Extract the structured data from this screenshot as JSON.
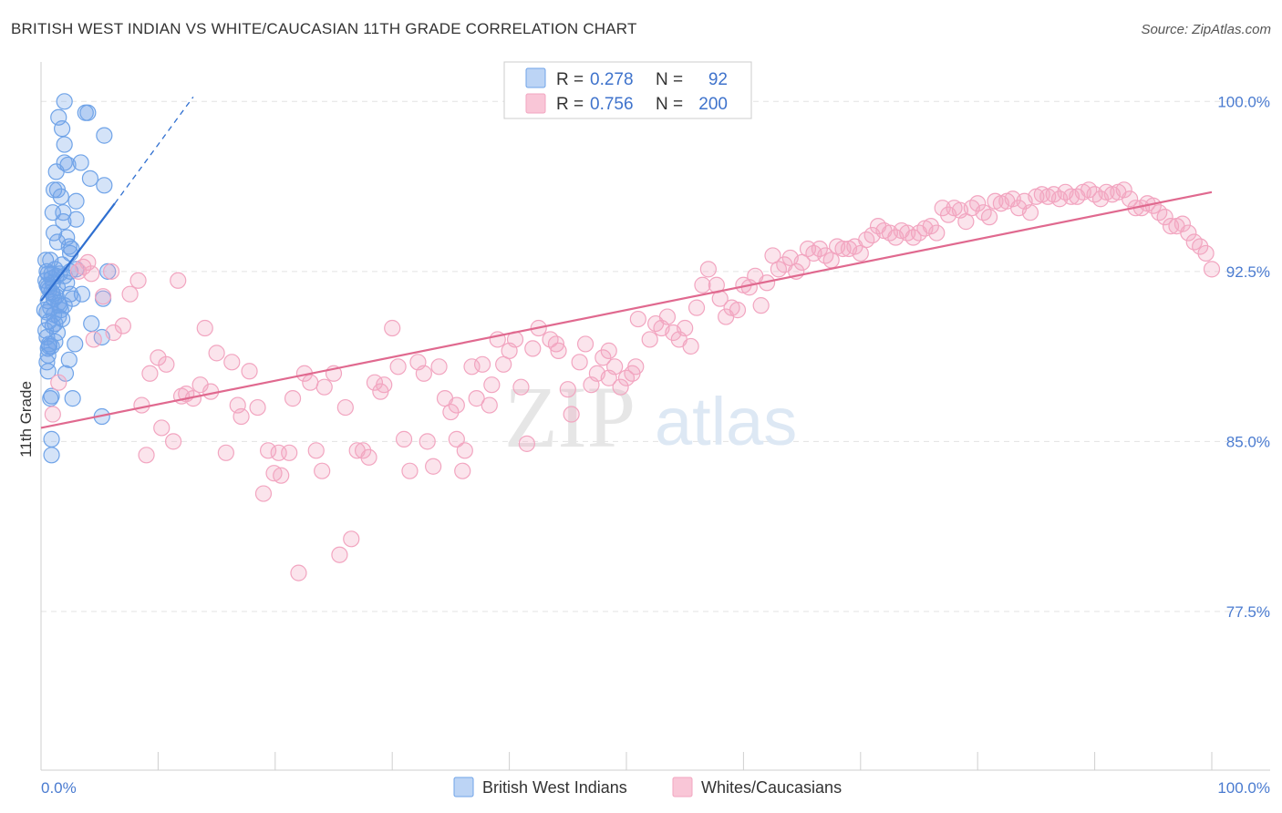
{
  "chart_data": {
    "type": "scatter",
    "title": "BRITISH WEST INDIAN VS WHITE/CAUCASIAN 11TH GRADE CORRELATION CHART",
    "source": "Source: ZipAtlas.com",
    "ylabel": "11th Grade",
    "xlabel": "",
    "xlim": [
      0,
      100
    ],
    "ylim": [
      70.5,
      101.5
    ],
    "x_tick_labels": [
      "0.0%",
      "100.0%"
    ],
    "y_ticks": [
      {
        "value": 77.5,
        "label": "77.5%"
      },
      {
        "value": 85.0,
        "label": "85.0%"
      },
      {
        "value": 92.5,
        "label": "92.5%"
      },
      {
        "value": 100.0,
        "label": "100.0%"
      }
    ],
    "watermark": {
      "part1": "ZIP",
      "part2": "atlas"
    },
    "legend": {
      "r_label": "R =",
      "n_label": "N =",
      "entries": [
        {
          "r": "0.278",
          "n": "92"
        },
        {
          "r": "0.756",
          "n": "200"
        }
      ]
    },
    "series": [
      {
        "name": "British West Indians",
        "color": "#6fa3e8",
        "line_color": "#2f6fd0",
        "trend": {
          "x0": 0,
          "y0": 91.2,
          "x1": 6.3,
          "y1": 95.5,
          "dash_x1": 13,
          "dash_y1": 100.2
        },
        "points": [
          [
            2,
            100
          ],
          [
            4,
            99.5
          ],
          [
            1.5,
            99.3
          ],
          [
            3.8,
            99.5
          ],
          [
            1.8,
            98.8
          ],
          [
            5.4,
            98.5
          ],
          [
            2,
            98.1
          ],
          [
            3.4,
            97.3
          ],
          [
            2,
            97.3
          ],
          [
            2.3,
            97.2
          ],
          [
            1.3,
            96.9
          ],
          [
            4.2,
            96.6
          ],
          [
            5.4,
            96.3
          ],
          [
            1.4,
            96.1
          ],
          [
            1.1,
            96.1
          ],
          [
            1.7,
            95.8
          ],
          [
            3,
            95.6
          ],
          [
            1,
            95.1
          ],
          [
            1.9,
            95.1
          ],
          [
            3,
            94.8
          ],
          [
            1.9,
            94.7
          ],
          [
            1.1,
            94.2
          ],
          [
            2.2,
            94
          ],
          [
            1.4,
            93.8
          ],
          [
            2.4,
            93.6
          ],
          [
            2.6,
            93.5
          ],
          [
            2.5,
            93.3
          ],
          [
            0.4,
            93
          ],
          [
            1.8,
            92.8
          ],
          [
            3,
            92.6
          ],
          [
            0.5,
            92.5
          ],
          [
            0.9,
            92.4
          ],
          [
            1.6,
            92.4
          ],
          [
            2.5,
            92.5
          ],
          [
            0.9,
            92.2
          ],
          [
            0.6,
            92.4
          ],
          [
            5.7,
            92.5
          ],
          [
            2,
            92.3
          ],
          [
            0.4,
            92.1
          ],
          [
            1,
            92
          ],
          [
            0.5,
            91.9
          ],
          [
            1.4,
            91.8
          ],
          [
            0.7,
            91.7
          ],
          [
            0.9,
            91.6
          ],
          [
            2.5,
            91.5
          ],
          [
            1.3,
            91.4
          ],
          [
            3.5,
            91.5
          ],
          [
            1.1,
            91.3
          ],
          [
            0.6,
            91.2
          ],
          [
            2.7,
            91.3
          ],
          [
            1.5,
            91.1
          ],
          [
            2,
            91
          ],
          [
            0.3,
            90.8
          ],
          [
            1.7,
            90.8
          ],
          [
            0.5,
            90.7
          ],
          [
            1.1,
            90.6
          ],
          [
            1.5,
            90.5
          ],
          [
            1.8,
            90.4
          ],
          [
            1.2,
            90.2
          ],
          [
            4.3,
            90.2
          ],
          [
            5.3,
            91.3
          ],
          [
            1,
            90.1
          ],
          [
            0.4,
            89.9
          ],
          [
            5.2,
            89.6
          ],
          [
            1.2,
            89.4
          ],
          [
            0.7,
            89.3
          ],
          [
            2.9,
            89.3
          ],
          [
            0.7,
            89.2
          ],
          [
            0.9,
            89.2
          ],
          [
            0.6,
            89.1
          ],
          [
            0.6,
            88.8
          ],
          [
            2.4,
            88.6
          ],
          [
            0.5,
            88.5
          ],
          [
            0.6,
            88.1
          ],
          [
            2.1,
            88
          ],
          [
            0.9,
            87
          ],
          [
            2.7,
            86.9
          ],
          [
            0.8,
            86.9
          ],
          [
            5.2,
            86.1
          ],
          [
            0.9,
            85.1
          ],
          [
            0.9,
            84.4
          ],
          [
            0.6,
            91.8
          ],
          [
            1.2,
            92.6
          ],
          [
            0.8,
            93
          ],
          [
            2.2,
            92
          ],
          [
            1.3,
            92.3
          ],
          [
            0.7,
            90.3
          ],
          [
            1,
            91.5
          ],
          [
            0.5,
            89.6
          ],
          [
            1.6,
            91
          ],
          [
            0.8,
            90.9
          ],
          [
            1.4,
            89.8
          ]
        ]
      },
      {
        "name": "Whites/Caucasians",
        "color": "#f2a5c0",
        "line_color": "#e0698f",
        "trend": {
          "x0": 0,
          "y0": 85.6,
          "x1": 100,
          "y1": 96.0
        },
        "points": [
          [
            1,
            86.2
          ],
          [
            1.5,
            87.6
          ],
          [
            3.2,
            92.5
          ],
          [
            4,
            92.9
          ],
          [
            4.3,
            92.4
          ],
          [
            3.6,
            92.7
          ],
          [
            4.5,
            89.5
          ],
          [
            6,
            92.5
          ],
          [
            6.2,
            89.8
          ],
          [
            5.3,
            91.4
          ],
          [
            7,
            90.1
          ],
          [
            7.6,
            91.5
          ],
          [
            8.3,
            92.1
          ],
          [
            8.6,
            86.6
          ],
          [
            9,
            84.4
          ],
          [
            9.3,
            88
          ],
          [
            10,
            88.7
          ],
          [
            10.3,
            85.6
          ],
          [
            10.7,
            88.4
          ],
          [
            11.3,
            85
          ],
          [
            11.7,
            92.1
          ],
          [
            12,
            87
          ],
          [
            12.4,
            87.1
          ],
          [
            13,
            86.9
          ],
          [
            13.6,
            87.5
          ],
          [
            14,
            90
          ],
          [
            14.5,
            87.2
          ],
          [
            15,
            88.9
          ],
          [
            15.8,
            84.5
          ],
          [
            16.3,
            88.5
          ],
          [
            16.8,
            86.6
          ],
          [
            17.1,
            86.1
          ],
          [
            17.8,
            88.1
          ],
          [
            18.5,
            86.5
          ],
          [
            19,
            82.7
          ],
          [
            19.4,
            84.6
          ],
          [
            19.9,
            83.6
          ],
          [
            20.3,
            84.5
          ],
          [
            20.5,
            83.5
          ],
          [
            21.2,
            84.5
          ],
          [
            21.5,
            86.9
          ],
          [
            22,
            79.2
          ],
          [
            22.5,
            88
          ],
          [
            23,
            87.6
          ],
          [
            23.5,
            84.6
          ],
          [
            24,
            83.7
          ],
          [
            24.2,
            87.4
          ],
          [
            25,
            88
          ],
          [
            25.5,
            80
          ],
          [
            26,
            86.5
          ],
          [
            26.5,
            80.7
          ],
          [
            27,
            84.6
          ],
          [
            27.5,
            84.6
          ],
          [
            28,
            84.3
          ],
          [
            28.5,
            87.6
          ],
          [
            29,
            87.2
          ],
          [
            29.3,
            87.5
          ],
          [
            30,
            90
          ],
          [
            30.5,
            88.3
          ],
          [
            31,
            85.1
          ],
          [
            31.5,
            83.7
          ],
          [
            32.2,
            88.5
          ],
          [
            32.7,
            88
          ],
          [
            33,
            85
          ],
          [
            33.5,
            83.9
          ],
          [
            34,
            88.3
          ],
          [
            34.5,
            86.9
          ],
          [
            35,
            86.3
          ],
          [
            35.5,
            86.6
          ],
          [
            36,
            83.7
          ],
          [
            36.2,
            84.6
          ],
          [
            36.8,
            88.3
          ],
          [
            37.2,
            86.9
          ],
          [
            37.7,
            88.4
          ],
          [
            38.3,
            86.6
          ],
          [
            39,
            89.5
          ],
          [
            39.5,
            88.4
          ],
          [
            40,
            89
          ],
          [
            40.5,
            89.5
          ],
          [
            41,
            87.4
          ],
          [
            41.5,
            84.9
          ],
          [
            42,
            89.1
          ],
          [
            42.5,
            90
          ],
          [
            43.5,
            89.5
          ],
          [
            44,
            89.3
          ],
          [
            45,
            87.3
          ],
          [
            45.3,
            86.2
          ],
          [
            46,
            88.5
          ],
          [
            46.5,
            89.3
          ],
          [
            47,
            87.5
          ],
          [
            47.5,
            88
          ],
          [
            48,
            88.7
          ],
          [
            48.5,
            89
          ],
          [
            49,
            88.3
          ],
          [
            49.5,
            87.4
          ],
          [
            50,
            87.8
          ],
          [
            50.5,
            88
          ],
          [
            51,
            90.4
          ],
          [
            52,
            89.5
          ],
          [
            52.5,
            90.2
          ],
          [
            53,
            90
          ],
          [
            53.5,
            90.5
          ],
          [
            54,
            89.8
          ],
          [
            54.5,
            89.5
          ],
          [
            55,
            90
          ],
          [
            55.5,
            89.2
          ],
          [
            56,
            90.9
          ],
          [
            56.5,
            91.9
          ],
          [
            57,
            92.6
          ],
          [
            57.7,
            91.9
          ],
          [
            58,
            91.3
          ],
          [
            58.5,
            90.5
          ],
          [
            59,
            90.9
          ],
          [
            59.5,
            90.8
          ],
          [
            60,
            91.9
          ],
          [
            60.5,
            91.8
          ],
          [
            61,
            92.3
          ],
          [
            61.5,
            91
          ],
          [
            62,
            92
          ],
          [
            62.5,
            93.2
          ],
          [
            63,
            92.6
          ],
          [
            63.5,
            92.8
          ],
          [
            64,
            93.1
          ],
          [
            64.5,
            92.5
          ],
          [
            65,
            92.9
          ],
          [
            65.5,
            93.5
          ],
          [
            66,
            93.3
          ],
          [
            66.5,
            93.5
          ],
          [
            67,
            93.2
          ],
          [
            67.5,
            93
          ],
          [
            68,
            93.6
          ],
          [
            68.5,
            93.5
          ],
          [
            69,
            93.5
          ],
          [
            69.5,
            93.6
          ],
          [
            70,
            93.3
          ],
          [
            70.5,
            93.9
          ],
          [
            71,
            94.1
          ],
          [
            71.5,
            94.5
          ],
          [
            72,
            94.3
          ],
          [
            72.5,
            94.2
          ],
          [
            73,
            94
          ],
          [
            73.5,
            94.3
          ],
          [
            74,
            94.2
          ],
          [
            74.5,
            94
          ],
          [
            75,
            94.2
          ],
          [
            75.5,
            94.4
          ],
          [
            76,
            94.5
          ],
          [
            76.5,
            94.2
          ],
          [
            77,
            95.3
          ],
          [
            77.5,
            95
          ],
          [
            78,
            95.3
          ],
          [
            78.5,
            95.2
          ],
          [
            79,
            94.7
          ],
          [
            79.5,
            95.3
          ],
          [
            80,
            95.5
          ],
          [
            80.5,
            95.1
          ],
          [
            81,
            94.9
          ],
          [
            81.5,
            95.6
          ],
          [
            82,
            95.5
          ],
          [
            82.5,
            95.6
          ],
          [
            83,
            95.7
          ],
          [
            83.5,
            95.3
          ],
          [
            84,
            95.6
          ],
          [
            84.5,
            95.1
          ],
          [
            85,
            95.8
          ],
          [
            85.5,
            95.9
          ],
          [
            86,
            95.8
          ],
          [
            86.5,
            95.9
          ],
          [
            87,
            95.7
          ],
          [
            87.5,
            96
          ],
          [
            88,
            95.8
          ],
          [
            88.5,
            95.8
          ],
          [
            89,
            96
          ],
          [
            89.5,
            96.1
          ],
          [
            90,
            95.9
          ],
          [
            90.5,
            95.7
          ],
          [
            91,
            96
          ],
          [
            91.5,
            95.9
          ],
          [
            92,
            96
          ],
          [
            92.5,
            96.1
          ],
          [
            93,
            95.7
          ],
          [
            93.5,
            95.3
          ],
          [
            94,
            95.3
          ],
          [
            94.5,
            95.5
          ],
          [
            95,
            95.4
          ],
          [
            95.5,
            95.1
          ],
          [
            96,
            94.9
          ],
          [
            96.5,
            94.5
          ],
          [
            97,
            94.5
          ],
          [
            97.5,
            94.6
          ],
          [
            98,
            94.2
          ],
          [
            98.5,
            93.8
          ],
          [
            99,
            93.6
          ],
          [
            99.5,
            93.3
          ],
          [
            100,
            92.6
          ],
          [
            50.8,
            88.3
          ],
          [
            44.2,
            89
          ],
          [
            38.5,
            87.5
          ],
          [
            48.5,
            87.8
          ],
          [
            35.5,
            85.1
          ]
        ]
      }
    ],
    "bottom_legend": [
      "British West Indians",
      "Whites/Caucasians"
    ]
  }
}
